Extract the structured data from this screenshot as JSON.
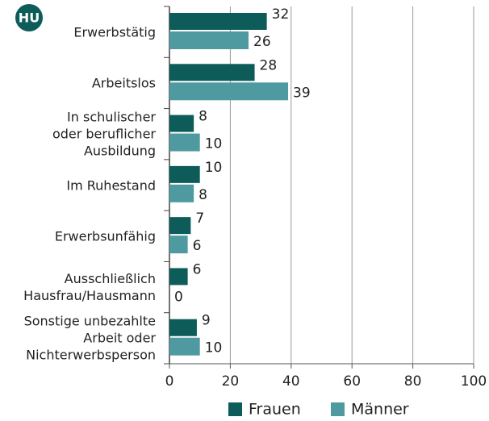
{
  "chart_data": {
    "type": "bar",
    "orientation": "horizontal",
    "badge": "HU",
    "categories": [
      "Erwerbstätig",
      "Arbeitslos",
      "In schulischer\noder beruflicher\nAusbildung",
      "Im Ruhestand",
      "Erwerbsunfähig",
      "Ausschließlich\nHausfrau/Hausmann",
      "Sonstige unbezahlte\nArbeit oder\nNichterwerbsperson"
    ],
    "series": [
      {
        "name": "Frauen",
        "color": "#0d5c5a",
        "values": [
          32,
          28,
          8,
          10,
          7,
          6,
          9
        ]
      },
      {
        "name": "Männer",
        "color": "#4f9aa0",
        "values": [
          26,
          39,
          10,
          8,
          6,
          0,
          10
        ]
      }
    ],
    "xlim": [
      0,
      100
    ],
    "xticks": [
      0,
      20,
      40,
      60,
      80,
      100
    ],
    "grid": true,
    "legend": "bottom"
  }
}
